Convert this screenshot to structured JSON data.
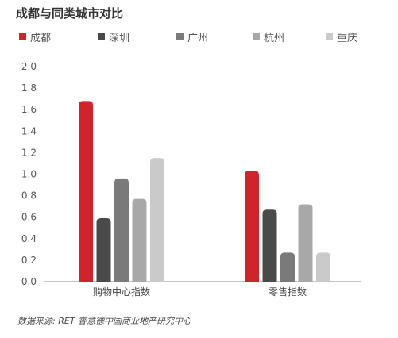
{
  "header": {
    "title": "成都与同类城市对比"
  },
  "legend": [
    {
      "label": "成都",
      "color": "#d0232a"
    },
    {
      "label": "深圳",
      "color": "#4a4a4a"
    },
    {
      "label": "广州",
      "color": "#7a7a7a"
    },
    {
      "label": "杭州",
      "color": "#a8a8a8"
    },
    {
      "label": "重庆",
      "color": "#cacaca"
    }
  ],
  "chart_data": {
    "type": "bar",
    "categories": [
      "购物中心指数",
      "零售指数"
    ],
    "series": [
      {
        "name": "成都",
        "color": "#d0232a",
        "values": [
          1.68,
          1.03
        ]
      },
      {
        "name": "深圳",
        "color": "#4a4a4a",
        "values": [
          0.59,
          0.67
        ]
      },
      {
        "name": "广州",
        "color": "#7a7a7a",
        "values": [
          0.96,
          0.27
        ]
      },
      {
        "name": "杭州",
        "color": "#a8a8a8",
        "values": [
          0.77,
          0.72
        ]
      },
      {
        "name": "重庆",
        "color": "#cacaca",
        "values": [
          1.15,
          0.27
        ]
      }
    ],
    "ylim": [
      0,
      2.0
    ],
    "yticks": [
      "0.0",
      "0.2",
      "0.4",
      "0.6",
      "0.8",
      "1.0",
      "1.2",
      "1.4",
      "1.6",
      "1.8",
      "2.0"
    ],
    "legend_position": "top",
    "grid": false
  },
  "footer": {
    "source": "数据来源: RET 睿意德中国商业地产研究中心"
  }
}
